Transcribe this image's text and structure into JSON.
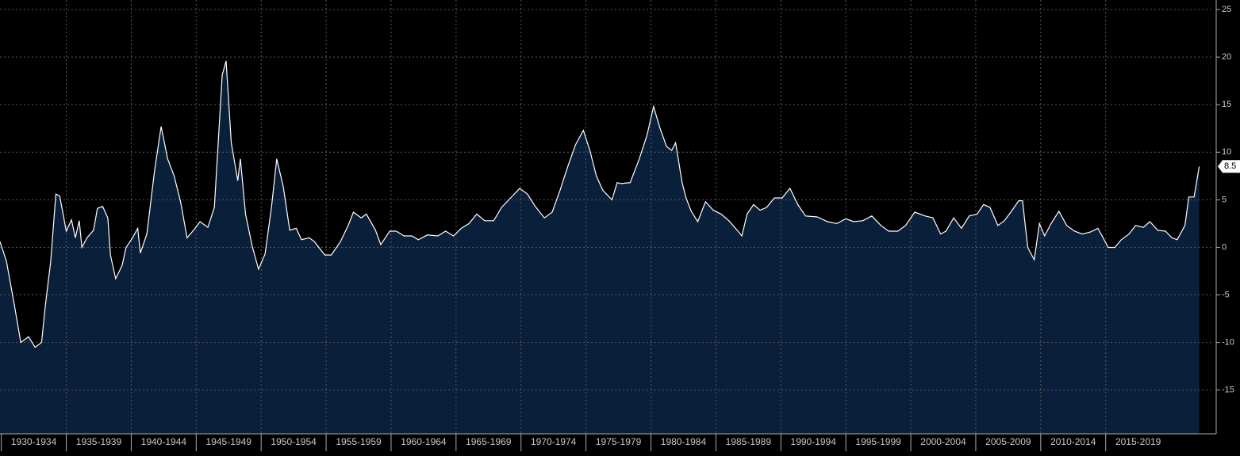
{
  "chart_data": {
    "type": "area",
    "x": [
      1929.9,
      1930.4,
      1931.0,
      1931.5,
      1932.1,
      1932.6,
      1933.1,
      1933.4,
      1933.8,
      1934.2,
      1934.5,
      1935.0,
      1935.4,
      1935.7,
      1936.0,
      1936.2,
      1936.6,
      1937.1,
      1937.4,
      1937.8,
      1938.2,
      1938.4,
      1938.8,
      1939.3,
      1939.6,
      1940.1,
      1940.5,
      1940.7,
      1941.2,
      1941.8,
      1942.3,
      1942.8,
      1943.3,
      1943.8,
      1944.3,
      1944.8,
      1945.3,
      1945.9,
      1946.4,
      1947.0,
      1947.3,
      1947.7,
      1948.2,
      1948.4,
      1948.8,
      1949.3,
      1949.8,
      1950.3,
      1950.8,
      1951.2,
      1951.7,
      1952.2,
      1952.7,
      1953.1,
      1953.7,
      1954.1,
      1954.9,
      1955.4,
      1956.1,
      1956.7,
      1957.1,
      1957.7,
      1958.1,
      1958.8,
      1959.2,
      1959.9,
      1960.4,
      1961.0,
      1961.6,
      1962.1,
      1962.8,
      1963.6,
      1964.2,
      1964.8,
      1965.4,
      1966.0,
      1966.6,
      1967.2,
      1967.9,
      1968.5,
      1969.2,
      1969.9,
      1970.5,
      1971.1,
      1971.8,
      1972.4,
      1973.0,
      1973.6,
      1974.2,
      1974.8,
      1975.3,
      1975.8,
      1976.3,
      1977.0,
      1977.4,
      1977.7,
      1978.4,
      1979.1,
      1979.7,
      1980.2,
      1980.7,
      1981.2,
      1981.6,
      1981.9,
      1982.4,
      1982.7,
      1983.1,
      1983.6,
      1984.2,
      1984.8,
      1985.4,
      1986.0,
      1986.7,
      1987.0,
      1987.4,
      1987.9,
      1988.4,
      1988.9,
      1989.5,
      1990.1,
      1990.7,
      1991.3,
      1991.9,
      1992.8,
      1993.6,
      1994.3,
      1995.0,
      1995.6,
      1996.3,
      1997.0,
      1997.7,
      1998.3,
      1999.0,
      1999.6,
      2000.3,
      2001.1,
      2001.7,
      2002.3,
      2002.7,
      2003.3,
      2003.9,
      2004.5,
      2005.1,
      2005.6,
      2006.1,
      2006.7,
      2007.2,
      2007.8,
      2008.3,
      2008.6,
      2009.0,
      2009.5,
      2009.9,
      2010.3,
      2010.8,
      2011.4,
      2012.0,
      2012.6,
      2013.2,
      2013.8,
      2014.4,
      2015.2,
      2015.7,
      2016.2,
      2016.8,
      2017.3,
      2017.9,
      2018.4,
      2019.0,
      2019.6,
      2020.1,
      2020.5,
      2021.1,
      2021.4,
      2021.8,
      2022.2
    ],
    "values": [
      0.6,
      -1.5,
      -6,
      -10,
      -9.4,
      -10.5,
      -10,
      -6,
      -1.5,
      5.6,
      5.4,
      1.7,
      2.9,
      1,
      2.8,
      0,
      1,
      1.8,
      4.1,
      4.3,
      3.1,
      -0.8,
      -3.3,
      -1.9,
      0,
      1,
      2,
      -0.6,
      1.4,
      8.1,
      12.7,
      9.3,
      7.5,
      4.8,
      1,
      1.8,
      2.7,
      2.1,
      4.2,
      18.1,
      19.6,
      11,
      7,
      9.3,
      3.5,
      0.2,
      -2.3,
      -0.7,
      4.3,
      9.3,
      6.4,
      1.8,
      2,
      0.8,
      1,
      0.6,
      -0.8,
      -0.8,
      0.6,
      2.3,
      3.7,
      3.1,
      3.5,
      1.8,
      0.3,
      1.7,
      1.7,
      1.2,
      1.2,
      0.8,
      1.3,
      1.2,
      1.7,
      1.2,
      2,
      2.5,
      3.5,
      2.8,
      2.8,
      4.2,
      5.2,
      6.2,
      5.6,
      4.3,
      3.1,
      3.7,
      6,
      8.5,
      10.8,
      12.3,
      10.2,
      7.5,
      6,
      5,
      6.8,
      6.7,
      6.8,
      9.3,
      11.8,
      14.8,
      12.5,
      10.6,
      10.2,
      11,
      6.8,
      5.2,
      3.8,
      2.7,
      4.8,
      3.9,
      3.5,
      2.8,
      1.7,
      1.2,
      3.5,
      4.5,
      3.9,
      4.2,
      5.2,
      5.2,
      6.2,
      4.5,
      3.3,
      3.2,
      2.7,
      2.5,
      3,
      2.7,
      2.8,
      3.3,
      2.3,
      1.7,
      1.7,
      2.3,
      3.7,
      3.3,
      3.1,
      1.4,
      1.7,
      3.1,
      2,
      3.3,
      3.5,
      4.5,
      4.2,
      2.3,
      2.8,
      3.9,
      4.9,
      4.9,
      0,
      -1.3,
      2.5,
      1.2,
      2.5,
      3.8,
      2.3,
      1.7,
      1.4,
      1.6,
      2,
      0,
      0,
      0.8,
      1.4,
      2.3,
      2.1,
      2.7,
      1.8,
      1.7,
      1,
      0.8,
      2.3,
      5.3,
      5.3,
      8.5
    ],
    "xlim": [
      1929.9,
      2023.2
    ],
    "xticks": [
      {
        "value": 1930,
        "label": "1930-1934"
      },
      {
        "value": 1935,
        "label": "1935-1939"
      },
      {
        "value": 1940,
        "label": "1940-1944"
      },
      {
        "value": 1945,
        "label": "1945-1949"
      },
      {
        "value": 1950,
        "label": "1950-1954"
      },
      {
        "value": 1955,
        "label": "1955-1959"
      },
      {
        "value": 1960,
        "label": "1960-1964"
      },
      {
        "value": 1965,
        "label": "1965-1969"
      },
      {
        "value": 1970,
        "label": "1970-1974"
      },
      {
        "value": 1975,
        "label": "1975-1979"
      },
      {
        "value": 1980,
        "label": "1980-1984"
      },
      {
        "value": 1985,
        "label": "1985-1989"
      },
      {
        "value": 1990,
        "label": "1990-1994"
      },
      {
        "value": 1995,
        "label": "1995-1999"
      },
      {
        "value": 2000,
        "label": "2000-2004"
      },
      {
        "value": 2005,
        "label": "2005-2009"
      },
      {
        "value": 2010,
        "label": "2010-2014"
      },
      {
        "value": 2015,
        "label": "2015-2019"
      }
    ],
    "ylim": [
      -19.6,
      26
    ],
    "yticks": [
      -15,
      -10,
      -5,
      0,
      5,
      10,
      15,
      20,
      25
    ],
    "grid": true,
    "color": "#0a1f3a",
    "line_color": "#ffffff"
  }
}
